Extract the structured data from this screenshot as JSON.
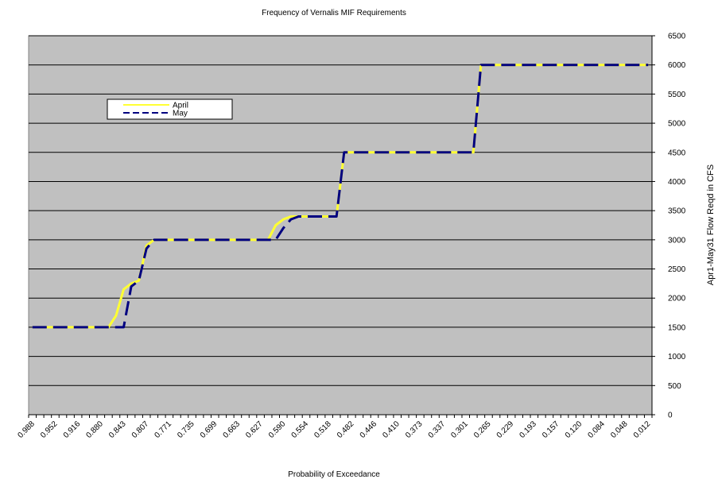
{
  "chart_data": {
    "type": "line",
    "title": "Frequency of Vernalis MIF Requirements",
    "x_label": "Probability  of Exceedance",
    "y_label": "Apr1-May31 Flow Reqd in CFS",
    "y_axis_side": "right",
    "grid": true,
    "plot_background": "#c0c0c0",
    "legend_position": "top-left",
    "categories": [
      "0.988",
      null,
      null,
      "0.952",
      null,
      null,
      "0.916",
      null,
      null,
      "0.880",
      null,
      null,
      "0.843",
      null,
      null,
      "0.807",
      null,
      null,
      "0.771",
      null,
      null,
      "0.735",
      null,
      null,
      "0.699",
      null,
      null,
      "0.663",
      null,
      null,
      "0.627",
      null,
      null,
      "0.590",
      null,
      null,
      "0.554",
      null,
      null,
      "0.518",
      null,
      null,
      "0.482",
      null,
      null,
      "0.446",
      null,
      null,
      "0.410",
      null,
      null,
      "0.373",
      null,
      null,
      "0.337",
      null,
      null,
      "0.301",
      null,
      null,
      "0.265",
      null,
      null,
      "0.229",
      null,
      null,
      "0.193",
      null,
      null,
      "0.157",
      null,
      null,
      "0.120",
      null,
      null,
      "0.084",
      null,
      null,
      "0.048",
      null,
      null,
      "0.012"
    ],
    "series": [
      {
        "name": "April",
        "color": "#ffff33",
        "dash": false,
        "values": [
          1500,
          1500,
          1500,
          1500,
          1500,
          1500,
          1500,
          1500,
          1500,
          1500,
          1500,
          1700,
          2150,
          2250,
          2300,
          2900,
          3000,
          3000,
          3000,
          3000,
          3000,
          3000,
          3000,
          3000,
          3000,
          3000,
          3000,
          3000,
          3000,
          3000,
          3000,
          3000,
          3250,
          3350,
          3400,
          3400,
          3400,
          3400,
          3400,
          3400,
          3400,
          4500,
          4500,
          4500,
          4500,
          4500,
          4500,
          4500,
          4500,
          4500,
          4500,
          4500,
          4500,
          4500,
          4500,
          4500,
          4500,
          4500,
          4500,
          6000,
          6000,
          6000,
          6000,
          6000,
          6000,
          6000,
          6000,
          6000,
          6000,
          6000,
          6000,
          6000,
          6000,
          6000,
          6000,
          6000,
          6000,
          6000,
          6000,
          6000,
          6000,
          6000
        ]
      },
      {
        "name": "May",
        "color": "#000080",
        "dash": true,
        "values": [
          1500,
          1500,
          1500,
          1500,
          1500,
          1500,
          1500,
          1500,
          1500,
          1500,
          1500,
          1500,
          1500,
          2200,
          2300,
          2850,
          3000,
          3000,
          3000,
          3000,
          3000,
          3000,
          3000,
          3000,
          3000,
          3000,
          3000,
          3000,
          3000,
          3000,
          3000,
          3000,
          3000,
          3200,
          3350,
          3400,
          3400,
          3400,
          3400,
          3400,
          3400,
          4500,
          4500,
          4500,
          4500,
          4500,
          4500,
          4500,
          4500,
          4500,
          4500,
          4500,
          4500,
          4500,
          4500,
          4500,
          4500,
          4500,
          4500,
          6000,
          6000,
          6000,
          6000,
          6000,
          6000,
          6000,
          6000,
          6000,
          6000,
          6000,
          6000,
          6000,
          6000,
          6000,
          6000,
          6000,
          6000,
          6000,
          6000,
          6000,
          6000,
          6000
        ]
      }
    ],
    "ylim": [
      0,
      6500
    ],
    "yticks": [
      0,
      500,
      1000,
      1500,
      2000,
      2500,
      3000,
      3500,
      4000,
      4500,
      5000,
      5500,
      6000,
      6500
    ]
  }
}
